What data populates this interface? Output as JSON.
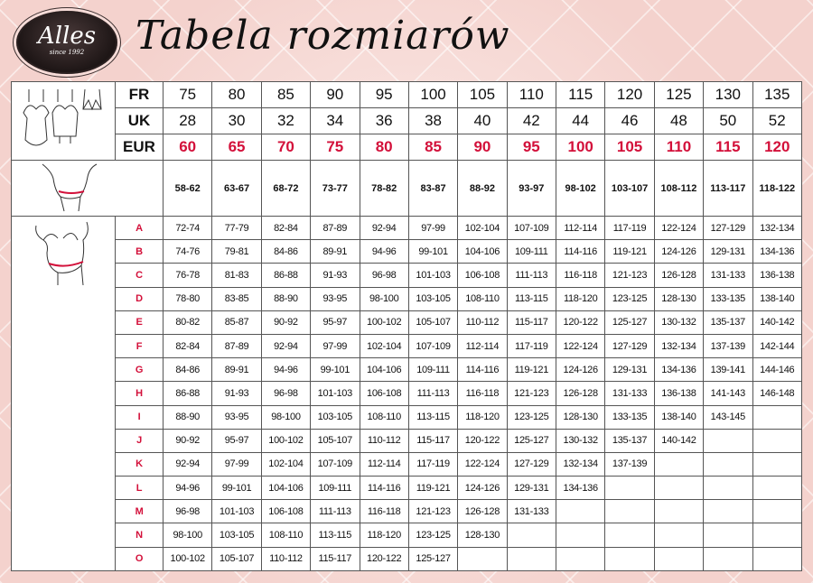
{
  "logo": {
    "brand": "Alles",
    "tagline": "since 1992"
  },
  "title": "Tabela rozmiarów",
  "colors": {
    "accent": "#d3103a",
    "background": "#f7dcd8"
  },
  "header_rows": [
    {
      "label": "FR",
      "values": [
        "75",
        "80",
        "85",
        "90",
        "95",
        "100",
        "105",
        "110",
        "115",
        "120",
        "125",
        "130",
        "135"
      ]
    },
    {
      "label": "UK",
      "values": [
        "28",
        "30",
        "32",
        "34",
        "36",
        "38",
        "40",
        "42",
        "44",
        "46",
        "48",
        "50",
        "52"
      ]
    },
    {
      "label": "EUR",
      "values": [
        "60",
        "65",
        "70",
        "75",
        "80",
        "85",
        "90",
        "95",
        "100",
        "105",
        "110",
        "115",
        "120"
      ]
    }
  ],
  "underbust": [
    "58-62",
    "63-67",
    "68-72",
    "73-77",
    "78-82",
    "83-87",
    "88-92",
    "93-97",
    "98-102",
    "103-107",
    "108-112",
    "113-117",
    "118-122"
  ],
  "cups": [
    {
      "cup": "A",
      "values": [
        "72-74",
        "77-79",
        "82-84",
        "87-89",
        "92-94",
        "97-99",
        "102-104",
        "107-109",
        "112-114",
        "117-119",
        "122-124",
        "127-129",
        "132-134"
      ]
    },
    {
      "cup": "B",
      "values": [
        "74-76",
        "79-81",
        "84-86",
        "89-91",
        "94-96",
        "99-101",
        "104-106",
        "109-111",
        "114-116",
        "119-121",
        "124-126",
        "129-131",
        "134-136"
      ]
    },
    {
      "cup": "C",
      "values": [
        "76-78",
        "81-83",
        "86-88",
        "91-93",
        "96-98",
        "101-103",
        "106-108",
        "111-113",
        "116-118",
        "121-123",
        "126-128",
        "131-133",
        "136-138"
      ]
    },
    {
      "cup": "D",
      "values": [
        "78-80",
        "83-85",
        "88-90",
        "93-95",
        "98-100",
        "103-105",
        "108-110",
        "113-115",
        "118-120",
        "123-125",
        "128-130",
        "133-135",
        "138-140"
      ]
    },
    {
      "cup": "E",
      "values": [
        "80-82",
        "85-87",
        "90-92",
        "95-97",
        "100-102",
        "105-107",
        "110-112",
        "115-117",
        "120-122",
        "125-127",
        "130-132",
        "135-137",
        "140-142"
      ]
    },
    {
      "cup": "F",
      "values": [
        "82-84",
        "87-89",
        "92-94",
        "97-99",
        "102-104",
        "107-109",
        "112-114",
        "117-119",
        "122-124",
        "127-129",
        "132-134",
        "137-139",
        "142-144"
      ]
    },
    {
      "cup": "G",
      "values": [
        "84-86",
        "89-91",
        "94-96",
        "99-101",
        "104-106",
        "109-111",
        "114-116",
        "119-121",
        "124-126",
        "129-131",
        "134-136",
        "139-141",
        "144-146"
      ]
    },
    {
      "cup": "H",
      "values": [
        "86-88",
        "91-93",
        "96-98",
        "101-103",
        "106-108",
        "111-113",
        "116-118",
        "121-123",
        "126-128",
        "131-133",
        "136-138",
        "141-143",
        "146-148"
      ]
    },
    {
      "cup": "I",
      "values": [
        "88-90",
        "93-95",
        "98-100",
        "103-105",
        "108-110",
        "113-115",
        "118-120",
        "123-125",
        "128-130",
        "133-135",
        "138-140",
        "143-145",
        ""
      ]
    },
    {
      "cup": "J",
      "values": [
        "90-92",
        "95-97",
        "100-102",
        "105-107",
        "110-112",
        "115-117",
        "120-122",
        "125-127",
        "130-132",
        "135-137",
        "140-142",
        "",
        ""
      ]
    },
    {
      "cup": "K",
      "values": [
        "92-94",
        "97-99",
        "102-104",
        "107-109",
        "112-114",
        "117-119",
        "122-124",
        "127-129",
        "132-134",
        "137-139",
        "",
        "",
        ""
      ]
    },
    {
      "cup": "L",
      "values": [
        "94-96",
        "99-101",
        "104-106",
        "109-111",
        "114-116",
        "119-121",
        "124-126",
        "129-131",
        "134-136",
        "",
        "",
        "",
        ""
      ]
    },
    {
      "cup": "M",
      "values": [
        "96-98",
        "101-103",
        "106-108",
        "111-113",
        "116-118",
        "121-123",
        "126-128",
        "131-133",
        "",
        "",
        "",
        "",
        ""
      ]
    },
    {
      "cup": "N",
      "values": [
        "98-100",
        "103-105",
        "108-110",
        "113-115",
        "118-120",
        "123-125",
        "128-130",
        "",
        "",
        "",
        "",
        "",
        ""
      ]
    },
    {
      "cup": "O",
      "values": [
        "100-102",
        "105-107",
        "110-112",
        "115-117",
        "120-122",
        "125-127",
        "",
        "",
        "",
        "",
        "",
        "",
        ""
      ]
    }
  ]
}
